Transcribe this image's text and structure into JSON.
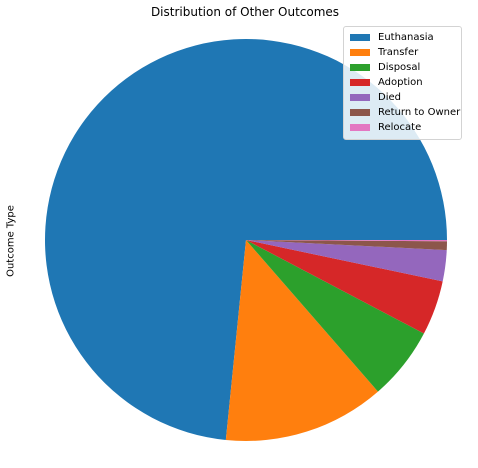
{
  "chart_data": {
    "type": "pie",
    "title": "Distribution of Other Outcomes",
    "ylabel": "Outcome Type",
    "legend_position": "top-right",
    "start_angle_degrees": 0,
    "direction": "counterclockwise",
    "slices": [
      {
        "label": "Euthanasia",
        "value": 73.4,
        "color": "#1f77b4"
      },
      {
        "label": "Transfer",
        "value": 13.0,
        "color": "#ff7f0e"
      },
      {
        "label": "Disposal",
        "value": 5.9,
        "color": "#2ca02c"
      },
      {
        "label": "Adoption",
        "value": 4.4,
        "color": "#d62728"
      },
      {
        "label": "Died",
        "value": 2.5,
        "color": "#9467bd"
      },
      {
        "label": "Return to Owner",
        "value": 0.7,
        "color": "#8c564b"
      },
      {
        "label": "Relocate",
        "value": 0.1,
        "color": "#e377c2"
      }
    ]
  }
}
